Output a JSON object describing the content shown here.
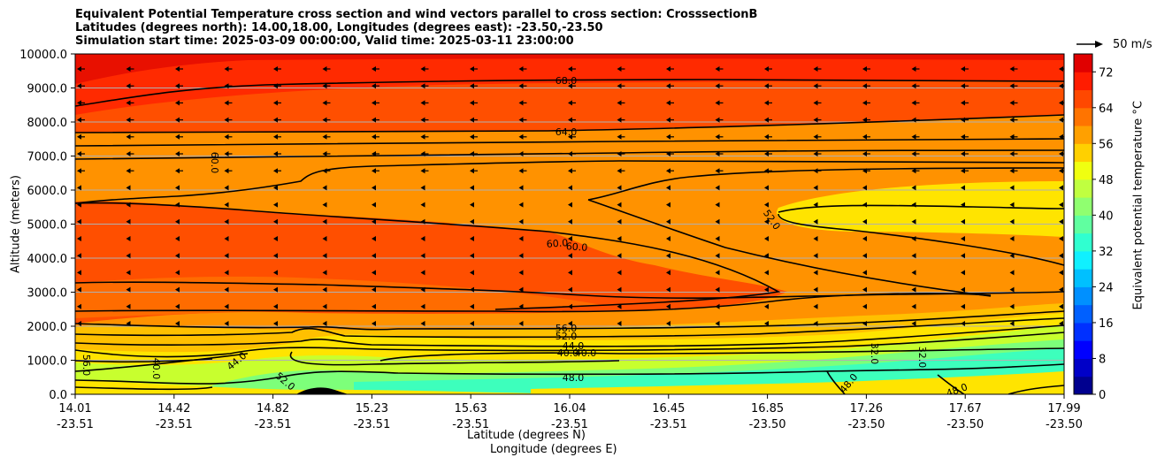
{
  "chart_data": {
    "type": "contour",
    "title_lines": [
      "Equivalent Potential Temperature cross section and wind vectors parallel to cross section: CrosssectionB",
      "Latitudes (degrees north): 14.00,18.00, Longitudes (degrees east): -23.50,-23.50",
      "Simulation start time: 2025-03-09 00:00:00, Valid time: 2025-03-11 23:00:00"
    ],
    "ylabel": "Altitude (meters)",
    "xlabel_lat": "Latitude (degrees N)",
    "xlabel_lon": "Longitude (degrees E)",
    "ylim": [
      0,
      10000
    ],
    "yticks": [
      "0.0",
      "1000.0",
      "2000.0",
      "3000.0",
      "4000.0",
      "5000.0",
      "6000.0",
      "7000.0",
      "8000.0",
      "9000.0",
      "10000.0"
    ],
    "xticks_lat": [
      "14.01",
      "14.42",
      "14.82",
      "15.23",
      "15.63",
      "16.04",
      "16.45",
      "16.85",
      "17.26",
      "17.67",
      "17.99"
    ],
    "xticks_lon": [
      "-23.51",
      "-23.51",
      "-23.51",
      "-23.51",
      "-23.51",
      "-23.51",
      "-23.51",
      "-23.50",
      "-23.50",
      "-23.50",
      "-23.50"
    ],
    "colorbar_label": "Equivalent potential temperature °C",
    "colorbar_ticks": [
      "0",
      "8",
      "16",
      "24",
      "32",
      "40",
      "48",
      "56",
      "64",
      "72"
    ],
    "colorbar_range": [
      0,
      76
    ],
    "quiver_key_label": "50 m/s",
    "contour_labels": [
      "68.0",
      "64.0",
      "60.0",
      "60.0",
      "60.0",
      "52.0",
      "56.0",
      "52.0",
      "44.0",
      "40.0",
      "40.0",
      "48.0",
      "56.0",
      "40.0",
      "44.0",
      "52.0",
      "32.0",
      "32.0",
      "48.0",
      "48.0"
    ],
    "grid": true
  },
  "colors": {
    "band_72": "#e81000",
    "band_68": "#ff2a00",
    "band_64": "#ff4f00",
    "band_60": "#ff6c00",
    "band_56": "#ff9200",
    "band_52": "#ffc000",
    "band_48": "#ffe400",
    "band_44": "#c8ff2e",
    "band_40": "#7dff7a",
    "band_36": "#3dffbc"
  }
}
